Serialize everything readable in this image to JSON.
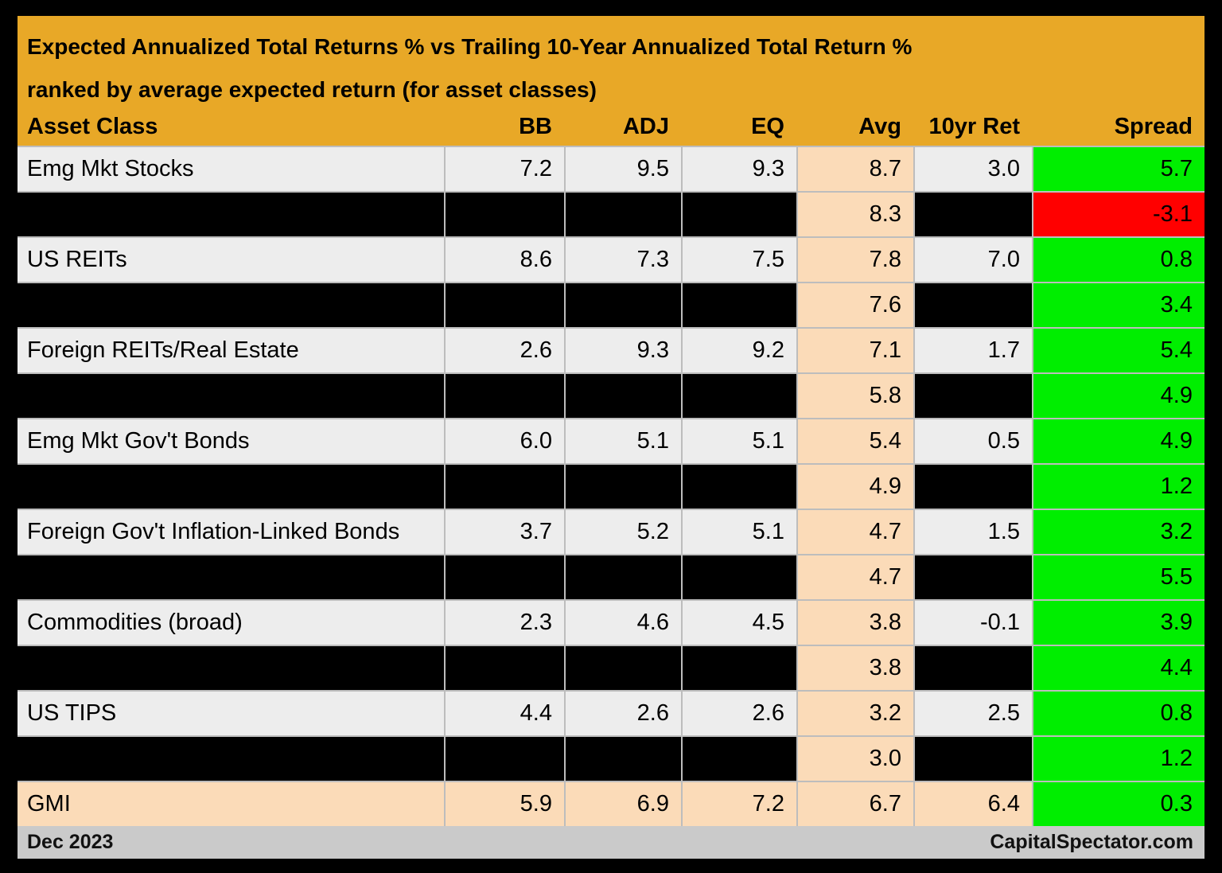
{
  "title": {
    "line1": "Expected Annualized Total Returns % vs Trailing 10-Year Annualized Total Return %",
    "line2": "ranked by average expected return (for asset classes)"
  },
  "footer": {
    "left": "Dec 2023",
    "right": "CapitalSpectator.com"
  },
  "colors": {
    "header_gold": "#E8A827",
    "avg_peach": "#FBDBB8",
    "row_light_gray": "#EDEDED",
    "row_black": "#000000",
    "spread_positive_green": "#00EE00",
    "spread_negative_red": "#FF0000",
    "footer_gray": "#CACACA",
    "grid_line_gray": "#BDBDBD"
  },
  "chart_data": {
    "type": "table",
    "title": "Expected Annualized Total Returns % vs Trailing 10-Year Annualized Total Return % ranked by average expected return (for asset classes)",
    "columns": [
      "Asset Class",
      "BB",
      "ADJ",
      "EQ",
      "Avg",
      "10yr Ret",
      "Spread"
    ],
    "rows": [
      {
        "asset_class": "Emg Mkt Stocks",
        "bb": "7.2",
        "adj": "9.5",
        "eq": "9.3",
        "avg": "8.7",
        "ret_10yr": "3.0",
        "spread": "5.7",
        "row_style": "normal",
        "spread_style": "positive"
      },
      {
        "asset_class": "",
        "bb": "",
        "adj": "",
        "eq": "",
        "avg": "8.3",
        "ret_10yr": "",
        "spread": "-3.1",
        "row_style": "redacted",
        "spread_style": "negative"
      },
      {
        "asset_class": "US REITs",
        "bb": "8.6",
        "adj": "7.3",
        "eq": "7.5",
        "avg": "7.8",
        "ret_10yr": "7.0",
        "spread": "0.8",
        "row_style": "normal",
        "spread_style": "positive"
      },
      {
        "asset_class": "",
        "bb": "",
        "adj": "",
        "eq": "",
        "avg": "7.6",
        "ret_10yr": "",
        "spread": "3.4",
        "row_style": "redacted",
        "spread_style": "positive"
      },
      {
        "asset_class": "Foreign REITs/Real Estate",
        "bb": "2.6",
        "adj": "9.3",
        "eq": "9.2",
        "avg": "7.1",
        "ret_10yr": "1.7",
        "spread": "5.4",
        "row_style": "normal",
        "spread_style": "positive"
      },
      {
        "asset_class": "",
        "bb": "",
        "adj": "",
        "eq": "",
        "avg": "5.8",
        "ret_10yr": "",
        "spread": "4.9",
        "row_style": "redacted",
        "spread_style": "positive"
      },
      {
        "asset_class": "Emg Mkt Gov't Bonds",
        "bb": "6.0",
        "adj": "5.1",
        "eq": "5.1",
        "avg": "5.4",
        "ret_10yr": "0.5",
        "spread": "4.9",
        "row_style": "normal",
        "spread_style": "positive"
      },
      {
        "asset_class": "",
        "bb": "",
        "adj": "",
        "eq": "",
        "avg": "4.9",
        "ret_10yr": "",
        "spread": "1.2",
        "row_style": "redacted",
        "spread_style": "positive"
      },
      {
        "asset_class": "Foreign Gov't Inflation-Linked Bonds",
        "bb": "3.7",
        "adj": "5.2",
        "eq": "5.1",
        "avg": "4.7",
        "ret_10yr": "1.5",
        "spread": "3.2",
        "row_style": "normal",
        "spread_style": "positive"
      },
      {
        "asset_class": "",
        "bb": "",
        "adj": "",
        "eq": "",
        "avg": "4.7",
        "ret_10yr": "",
        "spread": "5.5",
        "row_style": "redacted",
        "spread_style": "positive"
      },
      {
        "asset_class": "Commodities (broad)",
        "bb": "2.3",
        "adj": "4.6",
        "eq": "4.5",
        "avg": "3.8",
        "ret_10yr": "-0.1",
        "spread": "3.9",
        "row_style": "normal",
        "spread_style": "positive"
      },
      {
        "asset_class": "",
        "bb": "",
        "adj": "",
        "eq": "",
        "avg": "3.8",
        "ret_10yr": "",
        "spread": "4.4",
        "row_style": "redacted",
        "spread_style": "positive"
      },
      {
        "asset_class": "US TIPS",
        "bb": "4.4",
        "adj": "2.6",
        "eq": "2.6",
        "avg": "3.2",
        "ret_10yr": "2.5",
        "spread": "0.8",
        "row_style": "normal",
        "spread_style": "positive"
      },
      {
        "asset_class": "",
        "bb": "",
        "adj": "",
        "eq": "",
        "avg": "3.0",
        "ret_10yr": "",
        "spread": "1.2",
        "row_style": "redacted",
        "spread_style": "positive"
      },
      {
        "asset_class": "GMI",
        "bb": "5.9",
        "adj": "6.9",
        "eq": "7.2",
        "avg": "6.7",
        "ret_10yr": "6.4",
        "spread": "0.3",
        "row_style": "highlight",
        "spread_style": "positive"
      }
    ]
  }
}
